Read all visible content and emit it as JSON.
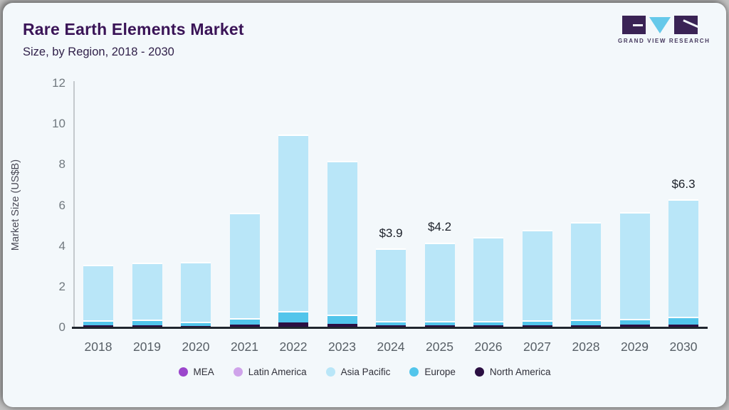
{
  "page": {
    "background": "#c0c0c0",
    "card_background": "#f3f8fb"
  },
  "logo": {
    "text": "GRAND VIEW RESEARCH",
    "block_color": "#3a2355",
    "triangle_color": "#66c9ea"
  },
  "chart_data": {
    "type": "bar",
    "stacked": true,
    "title": "Rare Earth Elements Market",
    "subtitle": "Size, by Region, 2018 - 2030",
    "xlabel": "",
    "ylabel": "Market Size (US$B)",
    "ylim": [
      0,
      12
    ],
    "yticks": [
      0,
      2,
      4,
      6,
      8,
      10,
      12
    ],
    "grid": false,
    "legend_position": "bottom",
    "categories": [
      "2018",
      "2019",
      "2020",
      "2021",
      "2022",
      "2023",
      "2024",
      "2025",
      "2026",
      "2027",
      "2028",
      "2029",
      "2030"
    ],
    "totals": [
      3.1,
      3.2,
      3.25,
      5.65,
      9.5,
      8.2,
      3.9,
      4.2,
      4.45,
      4.8,
      5.2,
      5.7,
      6.3
    ],
    "bar_labels": {
      "2024": "$3.9",
      "2025": "$4.2",
      "2030": "$6.3"
    },
    "stack_order_bottom_to_top": [
      "North America",
      "Europe",
      "Asia Pacific",
      "Latin America",
      "MEA"
    ],
    "series": [
      {
        "name": "MEA",
        "color": "#9b46cc",
        "values": [
          0.01,
          0.01,
          0.01,
          0.01,
          0.01,
          0.01,
          0.01,
          0.01,
          0.01,
          0.01,
          0.01,
          0.01,
          0.01
        ]
      },
      {
        "name": "Latin America",
        "color": "#cfa3ea",
        "values": [
          0.01,
          0.01,
          0.01,
          0.01,
          0.01,
          0.01,
          0.01,
          0.01,
          0.01,
          0.01,
          0.01,
          0.01,
          0.01
        ]
      },
      {
        "name": "Asia Pacific",
        "color": "#b9e6f8",
        "values": [
          2.72,
          2.81,
          2.95,
          5.16,
          8.68,
          7.55,
          3.58,
          3.86,
          4.11,
          4.44,
          4.81,
          5.25,
          5.75
        ]
      },
      {
        "name": "Europe",
        "color": "#52c5eb",
        "values": [
          0.26,
          0.25,
          0.2,
          0.32,
          0.55,
          0.45,
          0.2,
          0.22,
          0.22,
          0.22,
          0.25,
          0.3,
          0.38
        ]
      },
      {
        "name": "North America",
        "color": "#2b0f42",
        "values": [
          0.1,
          0.12,
          0.08,
          0.15,
          0.25,
          0.18,
          0.1,
          0.1,
          0.1,
          0.12,
          0.12,
          0.13,
          0.15
        ]
      }
    ],
    "axis_colors": {
      "baseline": "#20262e",
      "yaxis_line": "#c4c9cd"
    }
  }
}
